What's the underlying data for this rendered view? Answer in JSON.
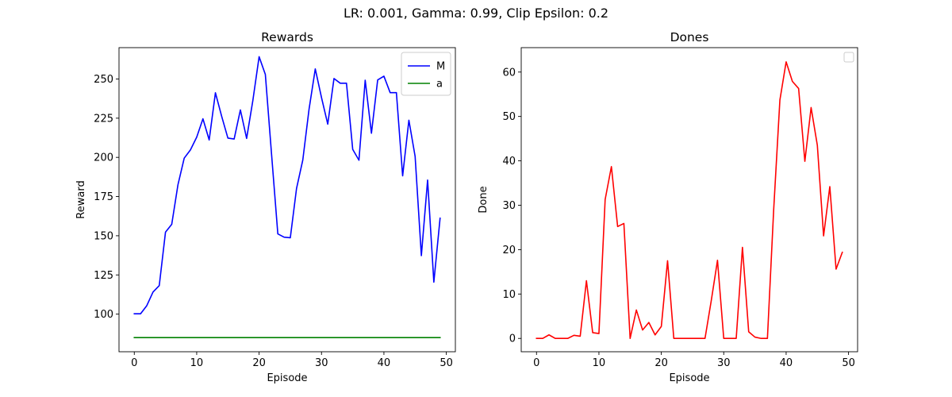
{
  "figure": {
    "suptitle": "LR: 0.001, Gamma: 0.99, Clip Epsilon: 0.2"
  },
  "chart_data": [
    {
      "type": "line",
      "title": "Rewards",
      "xlabel": "Episode",
      "ylabel": "Reward",
      "xlim": [
        -2.45,
        51.45
      ],
      "ylim": [
        76,
        270
      ],
      "xticks": [
        "0",
        "10",
        "20",
        "30",
        "40",
        "50"
      ],
      "xtick_values": [
        0,
        10,
        20,
        30,
        40,
        50
      ],
      "yticks": [
        "100",
        "125",
        "150",
        "175",
        "200",
        "225",
        "250"
      ],
      "ytick_values": [
        100,
        125,
        150,
        175,
        200,
        225,
        250
      ],
      "legend_position": "top-right",
      "series": [
        {
          "name": "M",
          "color": "#0000ff",
          "x": [
            0,
            1,
            2,
            3,
            4,
            5,
            6,
            7,
            8,
            9,
            10,
            11,
            12,
            13,
            14,
            15,
            16,
            17,
            18,
            19,
            20,
            21,
            22,
            23,
            24,
            25,
            26,
            27,
            28,
            29,
            30,
            31,
            32,
            33,
            34,
            35,
            36,
            37,
            38,
            39,
            40,
            41,
            42,
            43,
            44,
            45,
            46,
            47,
            48,
            49
          ],
          "y": [
            100.2,
            100.2,
            105.4,
            114.1,
            118.2,
            152.3,
            157.3,
            182.6,
            199.5,
            204.8,
            212.9,
            224.6,
            211.1,
            241.2,
            226.2,
            212.3,
            211.7,
            230.3,
            212.1,
            236.3,
            264.2,
            252.9,
            201.8,
            151.2,
            149.1,
            148.7,
            180.2,
            198.3,
            230.6,
            256.4,
            238.1,
            221.2,
            250.3,
            247.3,
            247.3,
            205.1,
            198.2,
            249.2,
            215.4,
            249.4,
            251.8,
            241.3,
            241.3,
            188.2,
            223.7,
            200.6,
            137.3,
            185.5,
            120.4,
            161.2
          ]
        },
        {
          "name": "a",
          "color": "#008000",
          "x": [
            0,
            1,
            2,
            3,
            4,
            5,
            6,
            7,
            8,
            9,
            10,
            11,
            12,
            13,
            14,
            15,
            16,
            17,
            18,
            19,
            20,
            21,
            22,
            23,
            24,
            25,
            26,
            27,
            28,
            29,
            30,
            31,
            32,
            33,
            34,
            35,
            36,
            37,
            38,
            39,
            40,
            41,
            42,
            43,
            44,
            45,
            46,
            47,
            48,
            49
          ],
          "y": [
            85,
            85,
            85,
            85,
            85,
            85,
            85,
            85,
            85,
            85,
            85,
            85,
            85,
            85,
            85,
            85,
            85,
            85,
            85,
            85,
            85,
            85,
            85,
            85,
            85,
            85,
            85,
            85,
            85,
            85,
            85,
            85,
            85,
            85,
            85,
            85,
            85,
            85,
            85,
            85,
            85,
            85,
            85,
            85,
            85,
            85,
            85,
            85,
            85,
            85
          ]
        }
      ]
    },
    {
      "type": "line",
      "title": "Dones",
      "xlabel": "Episode",
      "ylabel": "Done",
      "xlim": [
        -2.45,
        51.45
      ],
      "ylim": [
        -3,
        65.5
      ],
      "xticks": [
        "0",
        "10",
        "20",
        "30",
        "40",
        "50"
      ],
      "xtick_values": [
        0,
        10,
        20,
        30,
        40,
        50
      ],
      "yticks": [
        "0",
        "10",
        "20",
        "30",
        "40",
        "50",
        "60"
      ],
      "ytick_values": [
        0,
        10,
        20,
        30,
        40,
        50,
        60
      ],
      "legend_position": "top-right",
      "series": [
        {
          "color": "#ff0000",
          "x": [
            0,
            1,
            2,
            3,
            4,
            5,
            6,
            7,
            8,
            9,
            10,
            11,
            12,
            13,
            14,
            15,
            16,
            17,
            18,
            19,
            20,
            21,
            22,
            23,
            24,
            25,
            26,
            27,
            28,
            29,
            30,
            31,
            32,
            33,
            34,
            35,
            36,
            37,
            38,
            39,
            40,
            41,
            42,
            43,
            44,
            45,
            46,
            47,
            48,
            49
          ],
          "y": [
            0,
            0,
            0.8,
            0,
            0,
            0,
            0.7,
            0.5,
            13,
            1.3,
            1.1,
            31.3,
            38.7,
            25.2,
            25.9,
            0,
            6.4,
            1.9,
            3.6,
            0.8,
            2.7,
            17.5,
            0,
            0,
            0,
            0,
            0,
            0,
            8.5,
            17.6,
            0,
            0,
            0,
            20.5,
            1.5,
            0.3,
            0,
            0,
            28.9,
            53.7,
            62.3,
            57.9,
            56.3,
            39.9,
            52,
            43.5,
            23.1,
            34.2,
            15.6,
            19.4
          ]
        }
      ]
    }
  ]
}
